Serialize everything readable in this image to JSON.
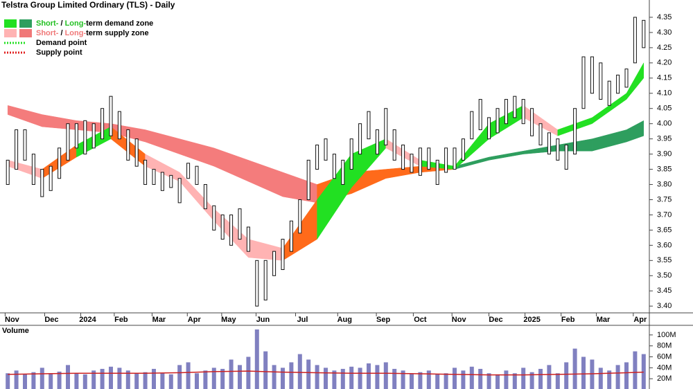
{
  "chart_data": [
    {
      "type": "range",
      "title": "Telstra Group Limited Ordinary (TLS) - Daily",
      "legend": [
        {
          "parts": [
            "Short-",
            " / ",
            "Long-",
            "term demand zone"
          ],
          "colors": [
            "#22e022",
            "#2e9e5e"
          ],
          "text_color": "#22c022"
        },
        {
          "parts": [
            "Short-",
            " / ",
            "Long-",
            "term supply zone"
          ],
          "colors": [
            "#ffb3b3",
            "#f07878"
          ],
          "text_color": "#f07878"
        },
        {
          "parts": [
            "Demand point"
          ],
          "colors": [
            "#22e022"
          ],
          "dotted": true
        },
        {
          "parts": [
            "Supply point"
          ],
          "colors": [
            "#e02020"
          ],
          "dotted": true
        }
      ],
      "high": [
        3.88,
        3.98,
        3.98,
        3.9,
        3.85,
        3.86,
        3.92,
        4.0,
        4.0,
        4.01,
        4.0,
        4.05,
        4.09,
        4.04,
        3.98,
        3.95,
        3.88,
        3.85,
        3.84,
        3.83,
        3.82,
        3.87,
        3.86,
        3.8,
        3.73,
        3.7,
        3.7,
        3.72,
        3.66,
        3.55,
        3.55,
        3.58,
        3.62,
        3.68,
        3.75,
        3.88,
        3.93,
        3.95,
        3.9,
        3.88,
        3.95,
        4.0,
        4.04,
        3.98,
        4.05,
        3.98,
        3.93,
        3.9,
        3.92,
        3.92,
        3.88,
        3.92,
        3.92,
        3.95,
        4.04,
        4.08,
        4.02,
        4.05,
        4.08,
        4.09,
        4.08,
        4.05,
        4.0,
        3.97,
        3.95,
        3.93,
        4.05,
        4.22,
        4.22,
        4.2,
        4.14,
        4.16,
        4.18,
        4.35,
        4.34
      ],
      "low": [
        3.8,
        3.85,
        3.88,
        3.8,
        3.76,
        3.78,
        3.82,
        3.88,
        3.92,
        3.9,
        3.92,
        3.95,
        3.96,
        3.95,
        3.88,
        3.86,
        3.8,
        3.8,
        3.78,
        3.79,
        3.74,
        3.82,
        3.8,
        3.72,
        3.65,
        3.62,
        3.6,
        3.62,
        3.58,
        3.4,
        3.42,
        3.5,
        3.52,
        3.58,
        3.64,
        3.75,
        3.85,
        3.88,
        3.82,
        3.8,
        3.85,
        3.9,
        3.95,
        3.9,
        3.93,
        3.88,
        3.85,
        3.84,
        3.83,
        3.85,
        3.8,
        3.84,
        3.85,
        3.88,
        3.95,
        3.98,
        3.95,
        3.97,
        4.0,
        4.02,
        4.0,
        3.96,
        3.93,
        3.9,
        3.88,
        3.85,
        3.9,
        4.05,
        4.1,
        4.08,
        4.06,
        4.1,
        4.12,
        4.2,
        4.25
      ],
      "zone_x": [
        0,
        4,
        8,
        12,
        16,
        20,
        24,
        28,
        32,
        36,
        40,
        44,
        48,
        52,
        56,
        60,
        64,
        68,
        72,
        74
      ],
      "long_term_zone": {
        "upper": [
          4.06,
          4.03,
          4.01,
          4.0,
          3.98,
          3.95,
          3.92,
          3.88,
          3.84,
          3.8,
          3.84,
          3.85,
          3.86,
          3.86,
          3.89,
          3.91,
          3.93,
          3.95,
          3.98,
          4.01
        ],
        "lower": [
          4.03,
          3.99,
          3.98,
          3.97,
          3.94,
          3.9,
          3.86,
          3.81,
          3.76,
          3.74,
          3.77,
          3.82,
          3.84,
          3.85,
          3.88,
          3.9,
          3.91,
          3.91,
          3.94,
          3.96
        ],
        "colors": [
          "#f47c7c",
          "#f47c7c",
          "#f47c7c",
          "#f47c7c",
          "#f47c7c",
          "#f47c7c",
          "#f47c7c",
          "#f47c7c",
          "#f47c7c",
          "#ff6a1a",
          "#ff6a1a",
          "#ff6a1a",
          "#ff6a1a",
          "#2e9e5e",
          "#2e9e5e",
          "#2e9e5e",
          "#2e9e5e",
          "#2e9e5e",
          "#2e9e5e",
          "#2e9e5e"
        ]
      },
      "short_term_zone": {
        "upper": [
          3.88,
          3.85,
          3.93,
          3.99,
          3.9,
          3.84,
          3.72,
          3.62,
          3.59,
          3.75,
          3.9,
          3.95,
          3.88,
          3.86,
          4.0,
          4.06,
          3.98,
          4.02,
          4.1,
          4.2
        ],
        "lower": [
          3.86,
          3.82,
          3.89,
          3.95,
          3.86,
          3.81,
          3.68,
          3.56,
          3.55,
          3.62,
          3.79,
          3.92,
          3.86,
          3.85,
          3.95,
          4.02,
          3.96,
          4.0,
          4.08,
          4.15
        ],
        "colors": [
          "#ffb3b3",
          "#ff6a1a",
          "#22e022",
          "#ff6a1a",
          "#ffb3b3",
          "#ffb3b3",
          "#ffb3b3",
          "#ffb3b3",
          "#ff6a1a",
          "#22e022",
          "#22e022",
          "#ffb3b3",
          "#22e022",
          "#22e022",
          "#22e022",
          "#ffb3b3",
          "#22e022",
          "#22e022",
          "#22e022",
          "#22e022"
        ]
      },
      "xlim": [
        0,
        75
      ],
      "xticks": [
        {
          "value": 1.0,
          "label": "Nov"
        },
        {
          "value": 5.6,
          "label": "Dec"
        },
        {
          "value": 9.8,
          "label": "2024"
        },
        {
          "value": 13.7,
          "label": "Feb"
        },
        {
          "value": 18.1,
          "label": "Mar"
        },
        {
          "value": 22.2,
          "label": "Apr"
        },
        {
          "value": 26.2,
          "label": "May"
        },
        {
          "value": 30.2,
          "label": "Jun"
        },
        {
          "value": 34.8,
          "label": "Jul"
        },
        {
          "value": 39.7,
          "label": "Aug"
        },
        {
          "value": 44.2,
          "label": "Sep"
        },
        {
          "value": 48.5,
          "label": "Oct"
        },
        {
          "value": 53.0,
          "label": "Nov"
        },
        {
          "value": 57.3,
          "label": "Dec"
        },
        {
          "value": 61.5,
          "label": "2025"
        },
        {
          "value": 65.7,
          "label": "Feb"
        },
        {
          "value": 69.8,
          "label": "Mar"
        },
        {
          "value": 74.1,
          "label": "Apr"
        }
      ],
      "ylim": [
        3.38,
        4.4
      ],
      "yticks": [
        {
          "value": 3.4,
          "label": "3.40"
        },
        {
          "value": 3.45,
          "label": "3.45"
        },
        {
          "value": 3.5,
          "label": "3.50"
        },
        {
          "value": 3.55,
          "label": "3.55"
        },
        {
          "value": 3.6,
          "label": "3.60"
        },
        {
          "value": 3.65,
          "label": "3.65"
        },
        {
          "value": 3.7,
          "label": "3.70"
        },
        {
          "value": 3.75,
          "label": "3.75"
        },
        {
          "value": 3.8,
          "label": "3.80"
        },
        {
          "value": 3.85,
          "label": "3.85"
        },
        {
          "value": 3.9,
          "label": "3.90"
        },
        {
          "value": 3.95,
          "label": "3.95"
        },
        {
          "value": 4.0,
          "label": "4.00"
        },
        {
          "value": 4.05,
          "label": "4.05"
        },
        {
          "value": 4.1,
          "label": "4.10"
        },
        {
          "value": 4.15,
          "label": "4.15"
        },
        {
          "value": 4.2,
          "label": "4.20"
        },
        {
          "value": 4.25,
          "label": "4.25"
        },
        {
          "value": 4.3,
          "label": "4.30"
        },
        {
          "value": 4.35,
          "label": "4.35"
        }
      ]
    },
    {
      "type": "bar",
      "title": "Volume",
      "color": "#8080c0",
      "values": [
        30000000,
        35000000,
        28000000,
        32000000,
        40000000,
        30000000,
        33000000,
        45000000,
        30000000,
        28000000,
        35000000,
        38000000,
        42000000,
        40000000,
        35000000,
        30000000,
        32000000,
        38000000,
        30000000,
        28000000,
        45000000,
        50000000,
        30000000,
        35000000,
        40000000,
        38000000,
        55000000,
        45000000,
        60000000,
        110000000,
        70000000,
        45000000,
        40000000,
        50000000,
        65000000,
        55000000,
        45000000,
        40000000,
        35000000,
        38000000,
        42000000,
        40000000,
        48000000,
        45000000,
        50000000,
        38000000,
        35000000,
        30000000,
        32000000,
        35000000,
        28000000,
        30000000,
        40000000,
        35000000,
        42000000,
        38000000,
        30000000,
        28000000,
        35000000,
        30000000,
        40000000,
        32000000,
        38000000,
        45000000,
        30000000,
        50000000,
        75000000,
        60000000,
        55000000,
        40000000,
        35000000,
        45000000,
        50000000,
        70000000,
        65000000
      ],
      "avg_x": [
        0,
        4,
        8,
        12,
        16,
        20,
        24,
        28,
        32,
        36,
        40,
        44,
        48,
        52,
        56,
        60,
        64,
        68,
        72,
        74
      ],
      "average": [
        28000000,
        29000000,
        30000000,
        30000000,
        30000000,
        31000000,
        33000000,
        34000000,
        32000000,
        31000000,
        30000000,
        30000000,
        29000000,
        28000000,
        27000000,
        27000000,
        28000000,
        29000000,
        31000000,
        32000000
      ],
      "average_color": "#cc2020",
      "xlim": [
        0,
        75
      ],
      "ylim": [
        0,
        115000000
      ],
      "yticks": [
        {
          "value": 20000000,
          "label": "20M"
        },
        {
          "value": 40000000,
          "label": "40M"
        },
        {
          "value": 60000000,
          "label": "60M"
        },
        {
          "value": 80000000,
          "label": "80M"
        },
        {
          "value": 100000000,
          "label": "100M"
        }
      ]
    }
  ]
}
